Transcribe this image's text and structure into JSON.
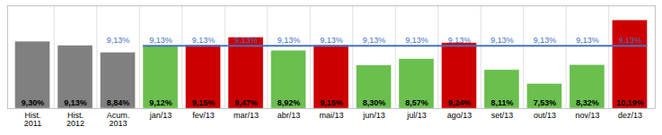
{
  "chart_data": {
    "type": "bar",
    "categories": [
      "Hist.\n2011",
      "Hist.\n2012",
      "Acum.\n2013",
      "jan/13",
      "fev/13",
      "mar/13",
      "abr/13",
      "mai/13",
      "jun/13",
      "jul/13",
      "ago/13",
      "set/13",
      "out/13",
      "nov/13",
      "dez/13"
    ],
    "values": [
      9.3,
      9.13,
      8.84,
      9.12,
      9.15,
      9.47,
      8.92,
      9.15,
      8.3,
      8.57,
      9.24,
      8.11,
      7.53,
      8.32,
      10.19
    ],
    "value_labels": [
      "9,30%",
      "9,13%",
      "8,84%",
      "9,12%",
      "9,15%",
      "9,47%",
      "8,92%",
      "9,15%",
      "8,30%",
      "8,57%",
      "9,24%",
      "8,11%",
      "7,53%",
      "8,32%",
      "10,19%"
    ],
    "colors": [
      "#808080",
      "#808080",
      "#808080",
      "#6abf4e",
      "#cc0000",
      "#cc0000",
      "#6abf4e",
      "#cc0000",
      "#6abf4e",
      "#6abf4e",
      "#cc0000",
      "#6abf4e",
      "#6abf4e",
      "#6abf4e",
      "#cc0000"
    ],
    "ylim": [
      6.5,
      10.8
    ],
    "data_labels": true,
    "tick_labels": "x",
    "grid": true,
    "target_line": {
      "value": 9.13,
      "from": "jan/13",
      "to": "dez/13",
      "color": "#4472c4"
    },
    "annotations": [
      {
        "text": "9,13%",
        "category": "Acum.\n2013",
        "value": 9.13,
        "color": "#4472c4"
      },
      {
        "text": "9,13%",
        "category": "jan/13",
        "value": 9.13,
        "color": "#4472c4"
      },
      {
        "text": "9,13%",
        "category": "fev/13",
        "value": 9.13,
        "color": "#4472c4"
      },
      {
        "text": "9,13%",
        "category": "mar/13",
        "value": 9.13,
        "color": "#4472c4"
      },
      {
        "text": "9,13%",
        "category": "abr/13",
        "value": 9.13,
        "color": "#4472c4"
      },
      {
        "text": "9,13%",
        "category": "mai/13",
        "value": 9.13,
        "color": "#4472c4"
      },
      {
        "text": "9,13%",
        "category": "jun/13",
        "value": 9.13,
        "color": "#4472c4"
      },
      {
        "text": "9,13%",
        "category": "jul/13",
        "value": 9.13,
        "color": "#4472c4"
      },
      {
        "text": "9,13%",
        "category": "ago/13",
        "value": 9.13,
        "color": "#4472c4"
      },
      {
        "text": "9,13%",
        "category": "set/13",
        "value": 9.13,
        "color": "#4472c4"
      },
      {
        "text": "9,13%",
        "category": "out/13",
        "value": 9.13,
        "color": "#4472c4"
      },
      {
        "text": "9,13%",
        "category": "nov/13",
        "value": 9.13,
        "color": "#4472c4"
      },
      {
        "text": "9,13%",
        "category": "dez/13",
        "value": 9.13,
        "color": "#4472c4"
      }
    ]
  }
}
